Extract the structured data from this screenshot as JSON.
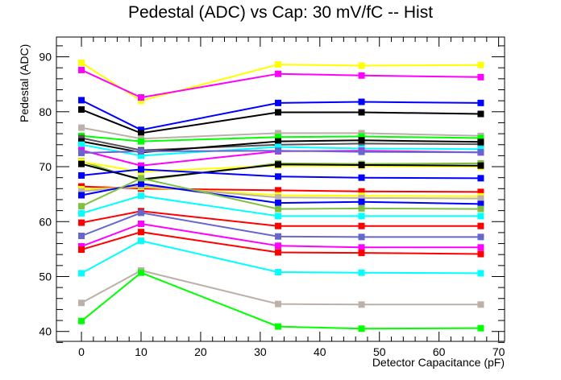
{
  "chart_data": {
    "type": "line",
    "title": "Pedestal (ADC) vs Cap: 30 mV/fC -- Hist",
    "xlabel": "Detector Capacitance (pF)",
    "ylabel": "Pedestal (ADC)",
    "xlim": [
      -4.2,
      71
    ],
    "ylim": [
      38.2,
      93.6
    ],
    "x_ticks": [
      0,
      10,
      20,
      30,
      40,
      50,
      60,
      70
    ],
    "y_ticks": [
      40,
      50,
      60,
      70,
      80,
      90
    ],
    "grid": false,
    "x": [
      0,
      10,
      33,
      47,
      67
    ],
    "series": [
      {
        "color": "#ffff00",
        "values": [
          88.9,
          82.0,
          88.6,
          88.4,
          88.5
        ]
      },
      {
        "color": "#ff00ff",
        "values": [
          87.6,
          82.6,
          86.9,
          86.6,
          86.3
        ]
      },
      {
        "color": "#0000ff",
        "values": [
          82.1,
          76.7,
          81.6,
          81.8,
          81.6
        ]
      },
      {
        "color": "#000000",
        "values": [
          80.4,
          76.1,
          79.9,
          79.9,
          79.6
        ]
      },
      {
        "color": "#bcb0a8",
        "values": [
          77.1,
          75.1,
          76.1,
          76.1,
          75.6
        ]
      },
      {
        "color": "#00ff00",
        "values": [
          75.6,
          74.6,
          75.4,
          75.5,
          75.2
        ]
      },
      {
        "color": "#555555",
        "values": [
          75.2,
          73.0,
          74.0,
          74.2,
          74.1
        ]
      },
      {
        "color": "#000000",
        "values": [
          74.6,
          72.6,
          74.6,
          74.8,
          74.5
        ]
      },
      {
        "color": "#00ffff",
        "values": [
          74.0,
          72.0,
          73.6,
          73.3,
          73.2
        ]
      },
      {
        "color": "#ff00ff",
        "values": [
          73.0,
          70.2,
          72.8,
          72.9,
          72.6
        ]
      },
      {
        "color": "#6666cc",
        "values": [
          72.5,
          72.8,
          72.9,
          72.7,
          72.6
        ]
      },
      {
        "color": "#80c040",
        "values": [
          71.0,
          67.5,
          70.6,
          70.5,
          70.6
        ]
      },
      {
        "color": "#ffff00",
        "values": [
          70.9,
          69.1,
          70.2,
          70.1,
          70.0
        ]
      },
      {
        "color": "#000000",
        "values": [
          70.5,
          67.7,
          70.4,
          70.3,
          70.2
        ]
      },
      {
        "color": "#0000ff",
        "values": [
          68.4,
          69.5,
          68.2,
          68.0,
          67.9
        ]
      },
      {
        "color": "#ff0000",
        "values": [
          66.4,
          66.0,
          65.7,
          65.5,
          65.4
        ]
      },
      {
        "color": "#ffff00",
        "values": [
          65.9,
          66.3,
          64.8,
          64.7,
          64.6
        ]
      },
      {
        "color": "#bcb0a8",
        "values": [
          65.5,
          66.5,
          64.4,
          64.3,
          64.2
        ]
      },
      {
        "color": "#0000ff",
        "values": [
          64.8,
          66.9,
          63.4,
          63.6,
          63.2
        ]
      },
      {
        "color": "#80c040",
        "values": [
          62.8,
          67.9,
          62.3,
          62.4,
          62.3
        ]
      },
      {
        "color": "#00ffff",
        "values": [
          61.5,
          64.7,
          61.0,
          61.0,
          61.0
        ]
      },
      {
        "color": "#ff0000",
        "values": [
          59.8,
          61.9,
          59.2,
          59.2,
          59.2
        ]
      },
      {
        "color": "#6666cc",
        "values": [
          57.4,
          61.6,
          57.3,
          57.2,
          57.2
        ]
      },
      {
        "color": "#ff00ff",
        "values": [
          55.5,
          59.6,
          55.6,
          55.3,
          55.3
        ]
      },
      {
        "color": "#ff0000",
        "values": [
          54.9,
          58.1,
          54.4,
          54.3,
          54.1
        ]
      },
      {
        "color": "#00ffff",
        "values": [
          50.6,
          56.5,
          50.8,
          50.7,
          50.6
        ]
      },
      {
        "color": "#bcb0a8",
        "values": [
          45.2,
          51.1,
          45.0,
          44.9,
          44.9
        ]
      },
      {
        "color": "#00ff00",
        "values": [
          41.9,
          50.7,
          40.9,
          40.5,
          40.6
        ]
      }
    ]
  }
}
